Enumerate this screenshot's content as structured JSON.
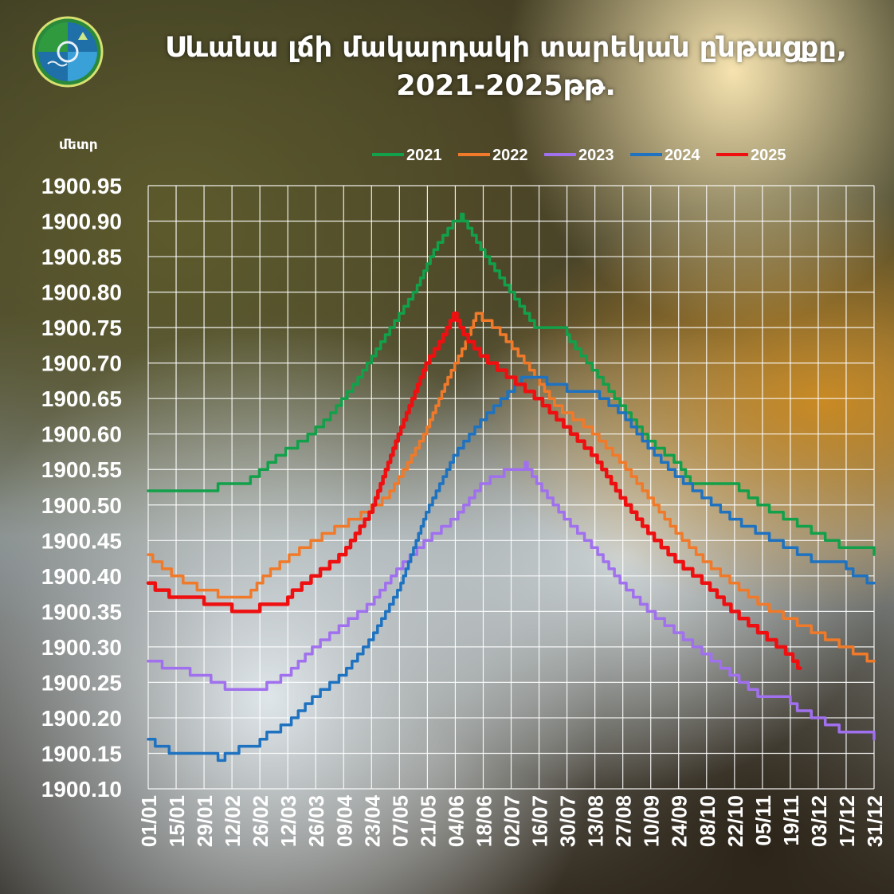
{
  "title": {
    "line1": "Սևանա լճի մակարդակի տարեկան ընթացքը,",
    "line2": "2021-2025թթ."
  },
  "colors": {
    "2021": "#12a04a",
    "2022": "#f07a2a",
    "2023": "#a070ee",
    "2024": "#1e72c0",
    "2025": "#ee1010",
    "grid": "#ffffff",
    "text": "#ffffff"
  },
  "icons": {
    "logo": "environment-ministry-emblem-icon"
  },
  "chart_data": {
    "type": "line",
    "ylabel": "մետր",
    "ylim": [
      1900.1,
      1900.95
    ],
    "yticks": [
      "1900.95",
      "1900.90",
      "1900.85",
      "1900.80",
      "1900.75",
      "1900.70",
      "1900.65",
      "1900.60",
      "1900.55",
      "1900.50",
      "1900.45",
      "1900.40",
      "1900.35",
      "1900.30",
      "1900.25",
      "1900.20",
      "1900.15",
      "1900.10"
    ],
    "xticks": [
      "01/01",
      "15/01",
      "29/01",
      "12/02",
      "26/02",
      "12/03",
      "26/03",
      "09/04",
      "23/04",
      "07/05",
      "21/05",
      "04/06",
      "18/06",
      "02/07",
      "16/07",
      "30/07",
      "13/08",
      "27/08",
      "10/09",
      "24/09",
      "08/10",
      "22/10",
      "05/11",
      "19/11",
      "03/12",
      "17/12",
      "31/12"
    ],
    "grid": true,
    "legend_position": "top",
    "series": [
      {
        "name": "2021",
        "x": [
          "01/01",
          "29/01",
          "05/02",
          "19/02",
          "28/02",
          "08/03",
          "20/03",
          "01/04",
          "15/04",
          "01/05",
          "15/05",
          "25/05",
          "04/06",
          "07/06",
          "20/06",
          "05/07",
          "15/07",
          "30/07",
          "13/08",
          "27/08",
          "10/09",
          "24/09",
          "01/10",
          "22/10",
          "05/11",
          "19/11",
          "03/12",
          "17/12",
          "31/12"
        ],
        "y": [
          1900.52,
          1900.52,
          1900.53,
          1900.53,
          1900.55,
          1900.57,
          1900.59,
          1900.62,
          1900.67,
          1900.74,
          1900.8,
          1900.86,
          1900.9,
          1900.91,
          1900.85,
          1900.79,
          1900.75,
          1900.74,
          1900.69,
          1900.64,
          1900.59,
          1900.56,
          1900.53,
          1900.53,
          1900.5,
          1900.48,
          1900.46,
          1900.44,
          1900.43
        ]
      },
      {
        "name": "2022",
        "x": [
          "01/01",
          "15/01",
          "29/01",
          "05/02",
          "20/02",
          "01/03",
          "15/03",
          "01/04",
          "15/04",
          "01/05",
          "10/05",
          "20/05",
          "01/06",
          "10/06",
          "15/06",
          "25/06",
          "10/07",
          "25/07",
          "10/08",
          "27/08",
          "10/09",
          "24/09",
          "08/10",
          "22/10",
          "05/11",
          "19/11",
          "03/12",
          "17/12",
          "31/12"
        ],
        "y": [
          1900.43,
          1900.4,
          1900.38,
          1900.37,
          1900.37,
          1900.4,
          1900.43,
          1900.46,
          1900.48,
          1900.51,
          1900.55,
          1900.6,
          1900.68,
          1900.73,
          1900.77,
          1900.75,
          1900.7,
          1900.64,
          1900.61,
          1900.56,
          1900.51,
          1900.46,
          1900.42,
          1900.39,
          1900.36,
          1900.34,
          1900.32,
          1900.3,
          1900.28
        ]
      },
      {
        "name": "2023",
        "x": [
          "01/01",
          "29/01",
          "12/02",
          "26/02",
          "12/03",
          "26/03",
          "09/04",
          "23/04",
          "07/05",
          "21/05",
          "04/06",
          "18/06",
          "02/07",
          "09/07",
          "16/07",
          "30/07",
          "13/08",
          "27/08",
          "10/09",
          "24/09",
          "08/10",
          "22/10",
          "05/11",
          "19/11",
          "03/12",
          "17/12",
          "31/12"
        ],
        "y": [
          1900.28,
          1900.26,
          1900.24,
          1900.24,
          1900.26,
          1900.3,
          1900.33,
          1900.36,
          1900.41,
          1900.45,
          1900.48,
          1900.53,
          1900.55,
          1900.56,
          1900.53,
          1900.48,
          1900.44,
          1900.39,
          1900.35,
          1900.32,
          1900.29,
          1900.26,
          1900.23,
          1900.22,
          1900.2,
          1900.18,
          1900.17
        ]
      },
      {
        "name": "2024",
        "x": [
          "01/01",
          "15/01",
          "29/01",
          "05/02",
          "19/02",
          "26/02",
          "12/03",
          "26/03",
          "09/04",
          "23/04",
          "07/05",
          "21/05",
          "04/06",
          "18/06",
          "02/07",
          "09/07",
          "20/07",
          "30/07",
          "13/08",
          "27/08",
          "10/09",
          "24/09",
          "08/10",
          "22/10",
          "05/11",
          "19/11",
          "03/12",
          "17/12",
          "31/12"
        ],
        "y": [
          1900.17,
          1900.15,
          1900.15,
          1900.14,
          1900.16,
          1900.17,
          1900.19,
          1900.23,
          1900.26,
          1900.31,
          1900.38,
          1900.49,
          1900.57,
          1900.62,
          1900.66,
          1900.68,
          1900.67,
          1900.66,
          1900.66,
          1900.63,
          1900.58,
          1900.54,
          1900.51,
          1900.48,
          1900.46,
          1900.44,
          1900.42,
          1900.41,
          1900.39
        ]
      },
      {
        "name": "2025",
        "x": [
          "01/01",
          "15/01",
          "29/01",
          "12/02",
          "26/02",
          "12/03",
          "26/03",
          "09/04",
          "23/04",
          "07/05",
          "21/05",
          "28/05",
          "04/06",
          "09/06",
          "18/06",
          "02/07",
          "16/07",
          "30/07",
          "13/08",
          "27/08",
          "10/09",
          "24/09",
          "08/10",
          "22/10",
          "05/11",
          "19/11",
          "24/11"
        ],
        "y": [
          1900.39,
          1900.37,
          1900.36,
          1900.35,
          1900.36,
          1900.37,
          1900.4,
          1900.43,
          1900.49,
          1900.6,
          1900.7,
          1900.73,
          1900.77,
          1900.74,
          1900.71,
          1900.68,
          1900.65,
          1900.61,
          1900.57,
          1900.51,
          1900.46,
          1900.42,
          1900.39,
          1900.35,
          1900.32,
          1900.29,
          1900.27
        ]
      }
    ]
  }
}
